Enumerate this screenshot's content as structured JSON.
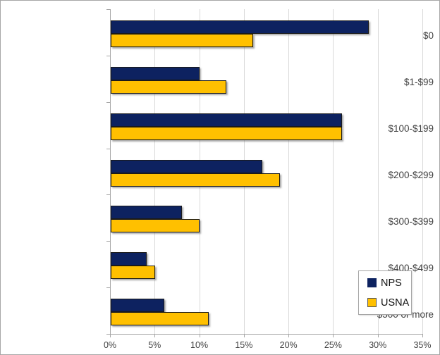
{
  "chart_data": {
    "type": "bar",
    "orientation": "horizontal",
    "title": "",
    "xlabel": "",
    "ylabel": "",
    "grid": true,
    "categories": [
      "$0",
      "$1-$99",
      "$100-$199",
      "$200-$299",
      "$300-$399",
      "$400-$499",
      "$500 or more"
    ],
    "series": [
      {
        "name": "NPS",
        "color": "#0d2260",
        "border_color": "#1a1a1a",
        "values": [
          29,
          10,
          26,
          17,
          8,
          4,
          6
        ]
      },
      {
        "name": "USNA",
        "color": "#ffc000",
        "border_color": "#1a1a1a",
        "values": [
          16,
          13,
          26,
          19,
          10,
          5,
          11
        ]
      }
    ],
    "x_axis": {
      "min": 0,
      "max": 35,
      "step": 5,
      "unit": "%",
      "tick_labels": [
        "0%",
        "5%",
        "10%",
        "15%",
        "20%",
        "25%",
        "30%",
        "35%"
      ]
    },
    "legend": {
      "position": "bottom-right",
      "entries": [
        "NPS",
        "USNA"
      ]
    },
    "colors": {
      "gridline": "#d9d9d9",
      "axis": "#a6a6a6",
      "label_text": "#3f3f3f",
      "background": "#ffffff",
      "chart_border": "#a6a6a6"
    }
  }
}
